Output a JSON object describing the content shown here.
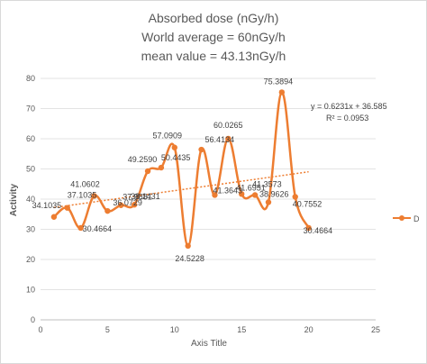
{
  "chart_data": {
    "type": "scatter",
    "title_lines": [
      "Absorbed dose (nGy/h)",
      "World average = 60nGy/h",
      "mean value = 43.13nGy/h"
    ],
    "xlabel": "Axis Title",
    "ylabel": "Activity",
    "xlim": [
      0,
      25
    ],
    "ylim": [
      0,
      80
    ],
    "xticks": [
      0,
      5,
      10,
      15,
      20,
      25
    ],
    "yticks": [
      0,
      10,
      20,
      30,
      40,
      50,
      60,
      70,
      80
    ],
    "grid": "horizontal",
    "legend_position": "right",
    "series": [
      {
        "name": "D",
        "color": "#ED7D31",
        "x": [
          1,
          2,
          3,
          4,
          5,
          6,
          7,
          8,
          9,
          10,
          11,
          12,
          13,
          14,
          15,
          16,
          17,
          18,
          19,
          20
        ],
        "y": [
          34.1035,
          37.1035,
          30.4664,
          41.0602,
          36.0729,
          37.9881,
          38.1431,
          49.259,
          50.4435,
          57.0909,
          24.5228,
          56.4134,
          41.3643,
          60.0265,
          41.6951,
          41.3573,
          38.9626,
          75.3894,
          40.7552,
          30.4664
        ],
        "labels": [
          "34.1035",
          "37.1035",
          "30.4664",
          "41.0602",
          "36.0729",
          "37.9881",
          "38.1431",
          "49.2590",
          "50.4435",
          "57.0909",
          "24.5228",
          "56.4134",
          "41.3643",
          "60.0265",
          "41.6951",
          "41.3573",
          "38.9626",
          "75.3894",
          "40.7552",
          "30.4664"
        ]
      }
    ],
    "trendline": {
      "type": "linear",
      "slope": 0.6231,
      "intercept": 36.585,
      "equation": "y = 0.6231x + 36.585",
      "r2": "R² = 0.0953",
      "color": "#ED7D31"
    }
  }
}
